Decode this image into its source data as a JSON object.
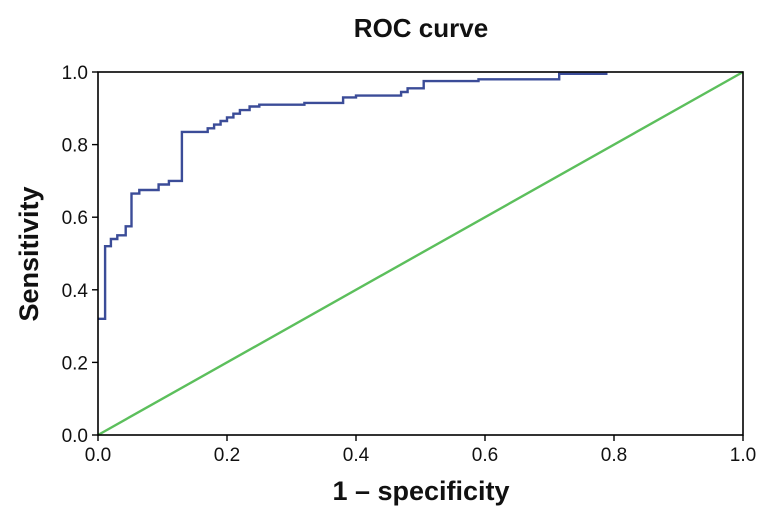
{
  "chart_data": {
    "type": "line",
    "title": "ROC curve",
    "xlabel": "1 – specificity",
    "ylabel": "Sensitivity",
    "xlim": [
      0,
      1
    ],
    "ylim": [
      0,
      1
    ],
    "x_ticks": [
      "0.0",
      "0.2",
      "0.4",
      "0.6",
      "0.8",
      "1.0"
    ],
    "y_ticks": [
      "0.0",
      "0.2",
      "0.4",
      "0.6",
      "0.8",
      "1.0"
    ],
    "grid": false,
    "series": [
      {
        "name": "ROC curve",
        "color": "#3b4c98",
        "step": true,
        "x": [
          0.0,
          0.0,
          0.011,
          0.011,
          0.02,
          0.02,
          0.03,
          0.03,
          0.043,
          0.043,
          0.052,
          0.052,
          0.064,
          0.064,
          0.094,
          0.094,
          0.11,
          0.11,
          0.13,
          0.13,
          0.17,
          0.17,
          0.18,
          0.18,
          0.19,
          0.19,
          0.2,
          0.2,
          0.21,
          0.21,
          0.22,
          0.22,
          0.235,
          0.235,
          0.25,
          0.25,
          0.32,
          0.32,
          0.38,
          0.38,
          0.4,
          0.4,
          0.47,
          0.47,
          0.48,
          0.48,
          0.505,
          0.505,
          0.59,
          0.59,
          0.715,
          0.715,
          0.79
        ],
        "y": [
          0.32,
          0.32,
          0.32,
          0.52,
          0.52,
          0.54,
          0.54,
          0.55,
          0.55,
          0.575,
          0.575,
          0.665,
          0.665,
          0.675,
          0.675,
          0.69,
          0.69,
          0.7,
          0.7,
          0.835,
          0.835,
          0.845,
          0.845,
          0.855,
          0.855,
          0.865,
          0.865,
          0.875,
          0.875,
          0.885,
          0.885,
          0.895,
          0.895,
          0.905,
          0.905,
          0.91,
          0.91,
          0.915,
          0.915,
          0.93,
          0.93,
          0.935,
          0.935,
          0.945,
          0.945,
          0.955,
          0.955,
          0.975,
          0.975,
          0.98,
          0.98,
          0.995,
          0.995
        ]
      },
      {
        "name": "Reference line",
        "color": "#5cbf5c",
        "x": [
          0,
          1
        ],
        "y": [
          0,
          1
        ]
      }
    ]
  }
}
